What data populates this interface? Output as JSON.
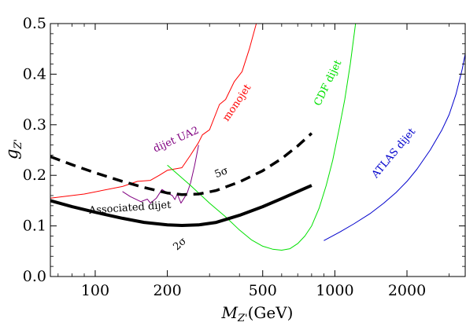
{
  "chart_data": {
    "type": "line",
    "xlabel_main": "M",
    "xlabel_sub": "Z'",
    "xlabel_unit": "(GeV)",
    "ylabel_main": "g",
    "ylabel_sub": "Z'",
    "xscale": "log",
    "xlim": [
      65,
      3500
    ],
    "ylim": [
      0.0,
      0.5
    ],
    "x_ticks": [
      {
        "value": 100,
        "label": "100"
      },
      {
        "value": 200,
        "label": "200"
      },
      {
        "value": 500,
        "label": "500"
      },
      {
        "value": 1000,
        "label": "1000"
      },
      {
        "value": 2000,
        "label": "2000"
      }
    ],
    "y_ticks": [
      {
        "value": 0.0,
        "label": "0.0"
      },
      {
        "value": 0.1,
        "label": "0.1"
      },
      {
        "value": 0.2,
        "label": "0.2"
      },
      {
        "value": 0.3,
        "label": "0.3"
      },
      {
        "value": 0.4,
        "label": "0.4"
      },
      {
        "value": 0.5,
        "label": "0.5"
      }
    ],
    "grid": false,
    "series": [
      {
        "name": "monojet",
        "color": "#ff0000",
        "width": 1,
        "dash": "",
        "points": [
          [
            65,
            0.155
          ],
          [
            90,
            0.163
          ],
          [
            130,
            0.178
          ],
          [
            150,
            0.188
          ],
          [
            170,
            0.19
          ],
          [
            185,
            0.2
          ],
          [
            200,
            0.21
          ],
          [
            230,
            0.215
          ],
          [
            250,
            0.24
          ],
          [
            270,
            0.265
          ],
          [
            280,
            0.28
          ],
          [
            300,
            0.29
          ],
          [
            330,
            0.34
          ],
          [
            350,
            0.35
          ],
          [
            380,
            0.385
          ],
          [
            410,
            0.405
          ],
          [
            440,
            0.45
          ],
          [
            470,
            0.5
          ]
        ]
      },
      {
        "name": "dijet UA2",
        "color": "#800080",
        "width": 1,
        "dash": "",
        "points": [
          [
            130,
            0.168
          ],
          [
            140,
            0.158
          ],
          [
            155,
            0.148
          ],
          [
            165,
            0.153
          ],
          [
            170,
            0.145
          ],
          [
            175,
            0.15
          ],
          [
            180,
            0.155
          ],
          [
            190,
            0.172
          ],
          [
            200,
            0.165
          ],
          [
            210,
            0.16
          ],
          [
            215,
            0.152
          ],
          [
            220,
            0.163
          ],
          [
            228,
            0.145
          ],
          [
            235,
            0.155
          ],
          [
            242,
            0.165
          ],
          [
            250,
            0.185
          ],
          [
            260,
            0.22
          ],
          [
            270,
            0.26
          ]
        ]
      },
      {
        "name": "CDF dijet",
        "color": "#00e000",
        "width": 1,
        "dash": "",
        "points": [
          [
            200,
            0.22
          ],
          [
            250,
            0.18
          ],
          [
            300,
            0.145
          ],
          [
            350,
            0.118
          ],
          [
            400,
            0.092
          ],
          [
            450,
            0.072
          ],
          [
            500,
            0.06
          ],
          [
            550,
            0.054
          ],
          [
            600,
            0.052
          ],
          [
            650,
            0.055
          ],
          [
            700,
            0.065
          ],
          [
            750,
            0.08
          ],
          [
            800,
            0.1
          ],
          [
            860,
            0.135
          ],
          [
            920,
            0.18
          ],
          [
            980,
            0.23
          ],
          [
            1040,
            0.29
          ],
          [
            1100,
            0.35
          ],
          [
            1160,
            0.42
          ],
          [
            1220,
            0.5
          ]
        ]
      },
      {
        "name": "ATLAS dijet",
        "color": "#0000cc",
        "width": 1,
        "dash": "",
        "points": [
          [
            900,
            0.071
          ],
          [
            1050,
            0.088
          ],
          [
            1200,
            0.104
          ],
          [
            1400,
            0.124
          ],
          [
            1600,
            0.145
          ],
          [
            1800,
            0.166
          ],
          [
            2000,
            0.188
          ],
          [
            2200,
            0.212
          ],
          [
            2500,
            0.25
          ],
          [
            2800,
            0.29
          ],
          [
            3000,
            0.32
          ],
          [
            3200,
            0.36
          ],
          [
            3400,
            0.41
          ],
          [
            3500,
            0.44
          ]
        ]
      },
      {
        "name": "Associated dijet 5σ",
        "color": "#000000",
        "width": 3.5,
        "dash": "13,8",
        "points": [
          [
            65,
            0.237
          ],
          [
            80,
            0.221
          ],
          [
            100,
            0.205
          ],
          [
            130,
            0.188
          ],
          [
            160,
            0.176
          ],
          [
            200,
            0.165
          ],
          [
            230,
            0.162
          ],
          [
            270,
            0.163
          ],
          [
            320,
            0.17
          ],
          [
            400,
            0.187
          ],
          [
            500,
            0.209
          ],
          [
            600,
            0.233
          ],
          [
            700,
            0.258
          ],
          [
            800,
            0.283
          ]
        ]
      },
      {
        "name": "Associated dijet 2σ",
        "color": "#000000",
        "width": 4,
        "dash": "",
        "points": [
          [
            65,
            0.15
          ],
          [
            80,
            0.138
          ],
          [
            100,
            0.127
          ],
          [
            130,
            0.115
          ],
          [
            160,
            0.107
          ],
          [
            200,
            0.102
          ],
          [
            230,
            0.101
          ],
          [
            270,
            0.102
          ],
          [
            320,
            0.107
          ],
          [
            400,
            0.121
          ],
          [
            500,
            0.138
          ],
          [
            600,
            0.154
          ],
          [
            700,
            0.168
          ],
          [
            800,
            0.18
          ]
        ]
      }
    ],
    "annotations": [
      {
        "text": "monojet",
        "color": "#ff0000",
        "x": 400,
        "y": 0.34,
        "angle": -56
      },
      {
        "text": "dijet UA2",
        "color": "#800080",
        "x": 220,
        "y": 0.265,
        "angle": -24
      },
      {
        "text": "CDF dijet",
        "color": "#00e000",
        "x": 960,
        "y": 0.38,
        "angle": -64
      },
      {
        "text": "ATLAS dijet",
        "color": "#0000cc",
        "x": 1800,
        "y": 0.24,
        "angle": -50
      },
      {
        "text": "5σ",
        "color": "#000000",
        "x": 340,
        "y": 0.2,
        "angle": -22
      },
      {
        "text": "Associated dijet",
        "color": "#000000",
        "x": 140,
        "y": 0.13,
        "angle": -4
      },
      {
        "text": "2σ",
        "color": "#000000",
        "x": 230,
        "y": 0.06,
        "angle": -42
      }
    ]
  }
}
